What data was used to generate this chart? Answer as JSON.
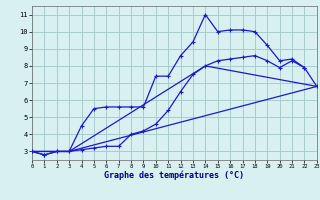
{
  "xlabel": "Graphe des températures (°C)",
  "background_color": "#d8f0f0",
  "grid_color": "#a8cccc",
  "line_color": "#1a1acc",
  "xlim": [
    0,
    23
  ],
  "ylim": [
    2.5,
    11.5
  ],
  "xticks": [
    0,
    1,
    2,
    3,
    4,
    5,
    6,
    7,
    8,
    9,
    10,
    11,
    12,
    13,
    14,
    15,
    16,
    17,
    18,
    19,
    20,
    21,
    22,
    23
  ],
  "yticks": [
    3,
    4,
    5,
    6,
    7,
    8,
    9,
    10,
    11
  ],
  "line1_x": [
    0,
    1,
    2,
    3,
    4,
    5,
    6,
    7,
    8,
    9,
    10,
    11,
    12,
    13,
    14,
    15,
    16,
    17,
    18,
    19,
    20,
    21,
    22
  ],
  "line1_y": [
    3.0,
    2.8,
    3.0,
    3.0,
    4.5,
    5.5,
    5.6,
    5.6,
    5.6,
    5.6,
    7.4,
    7.4,
    8.6,
    9.4,
    11.0,
    10.0,
    10.1,
    10.1,
    10.0,
    9.2,
    8.3,
    8.4,
    7.9
  ],
  "line2_x": [
    0,
    1,
    2,
    3,
    4,
    5,
    6,
    7,
    8,
    9,
    10,
    11,
    12,
    13,
    14,
    15,
    16,
    17,
    18,
    19,
    20,
    21,
    22,
    23
  ],
  "line2_y": [
    3.0,
    2.8,
    3.0,
    3.0,
    3.1,
    3.2,
    3.3,
    3.3,
    4.0,
    4.2,
    4.6,
    5.4,
    6.5,
    7.5,
    8.0,
    8.3,
    8.4,
    8.5,
    8.6,
    8.3,
    7.9,
    8.3,
    7.9,
    6.8
  ],
  "line3_x": [
    0,
    3,
    23
  ],
  "line3_y": [
    3.0,
    3.0,
    6.8
  ],
  "line4_x": [
    0,
    3,
    14,
    23
  ],
  "line4_y": [
    3.0,
    3.0,
    8.0,
    6.8
  ]
}
